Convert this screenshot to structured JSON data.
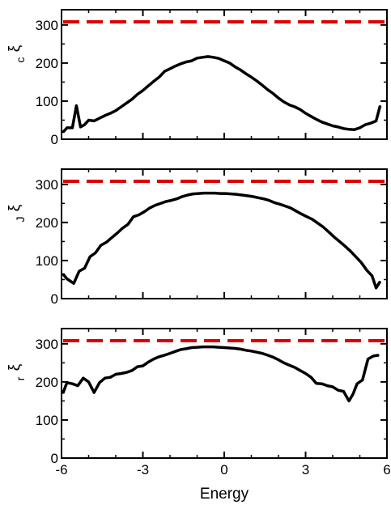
{
  "chart_data": [
    {
      "type": "line",
      "ylabel": "ξ",
      "ylabel_sub": "c",
      "xlim": [
        -6,
        6
      ],
      "ylim": [
        0,
        340
      ],
      "yticks": [
        "0",
        "100",
        "200",
        "300"
      ],
      "grid": false,
      "reference_line": {
        "y": 308,
        "style": "dashed",
        "color": "#dd0000"
      },
      "series": [
        {
          "color": "#000000",
          "x": [
            -5.95,
            -5.8,
            -5.6,
            -5.45,
            -5.3,
            -5.15,
            -5.0,
            -4.8,
            -4.6,
            -4.4,
            -4.2,
            -4.0,
            -3.8,
            -3.6,
            -3.4,
            -3.2,
            -3.0,
            -2.8,
            -2.6,
            -2.4,
            -2.2,
            -2.0,
            -1.8,
            -1.6,
            -1.4,
            -1.2,
            -1.0,
            -0.8,
            -0.6,
            -0.4,
            -0.2,
            0.0,
            0.2,
            0.4,
            0.6,
            0.8,
            1.0,
            1.2,
            1.4,
            1.6,
            1.8,
            2.0,
            2.2,
            2.4,
            2.6,
            2.8,
            3.0,
            3.2,
            3.4,
            3.6,
            3.8,
            4.0,
            4.2,
            4.4,
            4.6,
            4.8,
            5.0,
            5.2,
            5.4,
            5.6,
            5.75
          ],
          "y": [
            18,
            30,
            30,
            88,
            32,
            38,
            50,
            48,
            55,
            62,
            68,
            75,
            85,
            95,
            105,
            118,
            128,
            140,
            152,
            163,
            178,
            185,
            192,
            198,
            203,
            206,
            213,
            215,
            217,
            215,
            212,
            206,
            200,
            190,
            182,
            172,
            163,
            153,
            142,
            130,
            120,
            108,
            98,
            90,
            85,
            78,
            68,
            60,
            52,
            45,
            40,
            35,
            32,
            28,
            26,
            25,
            30,
            38,
            42,
            48,
            88
          ]
        }
      ]
    },
    {
      "type": "line",
      "ylabel": "ξ",
      "ylabel_sub": "J",
      "xlim": [
        -6,
        6
      ],
      "ylim": [
        0,
        340
      ],
      "yticks": [
        "0",
        "100",
        "200",
        "300"
      ],
      "grid": false,
      "reference_line": {
        "y": 308,
        "style": "dashed",
        "color": "#dd0000"
      },
      "series": [
        {
          "color": "#000000",
          "x": [
            -5.95,
            -5.8,
            -5.55,
            -5.35,
            -5.15,
            -4.95,
            -4.75,
            -4.55,
            -4.35,
            -4.15,
            -3.95,
            -3.75,
            -3.55,
            -3.35,
            -3.15,
            -2.95,
            -2.75,
            -2.55,
            -2.35,
            -2.15,
            -1.95,
            -1.75,
            -1.55,
            -1.35,
            -1.15,
            -0.95,
            -0.75,
            -0.55,
            -0.35,
            -0.15,
            0.05,
            0.25,
            0.45,
            0.65,
            0.85,
            1.05,
            1.25,
            1.45,
            1.65,
            1.85,
            2.05,
            2.25,
            2.45,
            2.65,
            2.85,
            3.05,
            3.25,
            3.45,
            3.65,
            3.85,
            4.05,
            4.25,
            4.45,
            4.65,
            4.85,
            5.05,
            5.25,
            5.45,
            5.6,
            5.75
          ],
          "y": [
            65,
            52,
            40,
            72,
            80,
            110,
            120,
            140,
            148,
            160,
            172,
            185,
            195,
            215,
            220,
            228,
            238,
            245,
            250,
            255,
            258,
            262,
            268,
            272,
            275,
            276,
            277,
            277,
            277,
            276,
            276,
            275,
            274,
            272,
            270,
            268,
            265,
            262,
            258,
            252,
            248,
            243,
            238,
            230,
            222,
            215,
            208,
            198,
            188,
            175,
            162,
            150,
            138,
            125,
            110,
            95,
            75,
            60,
            28,
            45
          ]
        }
      ]
    },
    {
      "type": "line",
      "ylabel": "ξ",
      "ylabel_sub": "r",
      "xlabel": "Energy",
      "xlim": [
        -6,
        6
      ],
      "ylim": [
        0,
        340
      ],
      "xticks": [
        "-6",
        "-3",
        "0",
        "3",
        "6"
      ],
      "yticks": [
        "0",
        "100",
        "200",
        "300"
      ],
      "grid": false,
      "reference_line": {
        "y": 308,
        "style": "dashed",
        "color": "#dd0000"
      },
      "series": [
        {
          "color": "#000000",
          "x": [
            -5.95,
            -5.8,
            -5.6,
            -5.4,
            -5.2,
            -5.0,
            -4.8,
            -4.6,
            -4.4,
            -4.2,
            -4.0,
            -3.8,
            -3.6,
            -3.4,
            -3.2,
            -3.0,
            -2.8,
            -2.6,
            -2.4,
            -2.2,
            -2.0,
            -1.8,
            -1.6,
            -1.4,
            -1.2,
            -1.0,
            -0.8,
            -0.6,
            -0.4,
            -0.2,
            0.0,
            0.2,
            0.4,
            0.6,
            0.8,
            1.0,
            1.2,
            1.4,
            1.6,
            1.8,
            2.0,
            2.2,
            2.4,
            2.6,
            2.8,
            3.0,
            3.2,
            3.4,
            3.6,
            3.8,
            4.0,
            4.2,
            4.4,
            4.6,
            4.75,
            4.9,
            5.1,
            5.3,
            5.5,
            5.7
          ],
          "y": [
            170,
            198,
            195,
            190,
            210,
            200,
            172,
            198,
            210,
            212,
            220,
            222,
            225,
            230,
            240,
            242,
            252,
            260,
            266,
            270,
            275,
            280,
            285,
            287,
            290,
            291,
            292,
            292,
            292,
            291,
            290,
            289,
            288,
            286,
            283,
            281,
            278,
            275,
            270,
            265,
            258,
            250,
            244,
            238,
            230,
            222,
            212,
            196,
            195,
            190,
            187,
            178,
            175,
            150,
            168,
            195,
            205,
            260,
            268,
            270
          ]
        }
      ]
    }
  ]
}
